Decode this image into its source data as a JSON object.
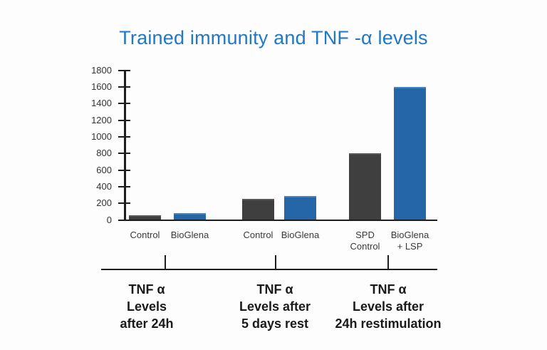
{
  "title": "Trained immunity and TNF -α levels",
  "colors": {
    "title": "#2178c4",
    "bar_dark": "#3f3f3f",
    "bar_dark_top": "#585858",
    "bar_blue": "#2566a9",
    "bar_blue_top": "#4483c2",
    "axis": "#1d1d1d",
    "tick_label": "#333333",
    "category_label": "#3a3a3a",
    "group_label": "#1a1a1a",
    "background": "#fdfdfd"
  },
  "chart_data": {
    "type": "bar",
    "title": "Trained immunity and TNF -α levels",
    "xlabel": "",
    "ylabel": "",
    "ylim": [
      0,
      1800
    ],
    "ytick_step": 200,
    "yticks": [
      0,
      200,
      400,
      600,
      800,
      1000,
      1200,
      1400,
      1600,
      1800
    ],
    "grid": false,
    "legend": "none",
    "groups": [
      {
        "label_lines": "TNF α\nLevels\nafter 24h",
        "bars": [
          {
            "category": "Control",
            "value": 60,
            "color": "dark"
          },
          {
            "category": "BioGlena",
            "value": 80,
            "color": "blue"
          }
        ]
      },
      {
        "label_lines": "TNF α\nLevels after\n5 days rest",
        "bars": [
          {
            "category": "Control",
            "value": 250,
            "color": "dark"
          },
          {
            "category": "BioGlena",
            "value": 290,
            "color": "blue"
          }
        ]
      },
      {
        "label_lines": "TNF α\nLevels after\n24h restimulation",
        "bars": [
          {
            "category": "SPD\nControl",
            "value": 800,
            "color": "dark"
          },
          {
            "category": "BioGlena\n+ LSP",
            "value": 1600,
            "color": "blue"
          }
        ]
      }
    ]
  }
}
